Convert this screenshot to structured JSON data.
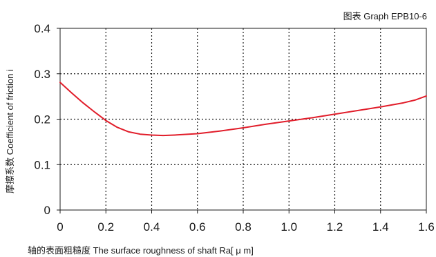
{
  "colors": {
    "curve": "#e11d2a",
    "axis": "#1a1a1a",
    "grid": "#1a1a1a",
    "background": "#ffffff"
  },
  "chart_data": {
    "type": "line",
    "caption": "图表 Graph EPB10-6",
    "xlabel": "轴的表面粗糙度 The surface roughness of shaft  Ra[ μ m]",
    "ylabel": "摩擦系数 Coefficient of friction i",
    "xlim": [
      0,
      1.6
    ],
    "ylim": [
      0,
      0.4
    ],
    "x_ticks": [
      "0",
      "0.2",
      "0.4",
      "0.6",
      "0.8",
      "1.0",
      "1.2",
      "1.4",
      "1.6"
    ],
    "y_ticks": [
      "0",
      "0.1",
      "0.2",
      "0.3",
      "0.4"
    ],
    "grid": true,
    "series": [
      {
        "x": [
          0,
          0.05,
          0.1,
          0.15,
          0.2,
          0.25,
          0.3,
          0.35,
          0.4,
          0.45,
          0.5,
          0.6,
          0.7,
          0.8,
          0.9,
          1.0,
          1.1,
          1.2,
          1.3,
          1.4,
          1.5,
          1.55,
          1.6
        ],
        "y": [
          0.281,
          0.258,
          0.236,
          0.216,
          0.197,
          0.182,
          0.172,
          0.167,
          0.165,
          0.164,
          0.165,
          0.168,
          0.174,
          0.181,
          0.189,
          0.196,
          0.203,
          0.211,
          0.219,
          0.227,
          0.236,
          0.242,
          0.251
        ]
      }
    ]
  }
}
